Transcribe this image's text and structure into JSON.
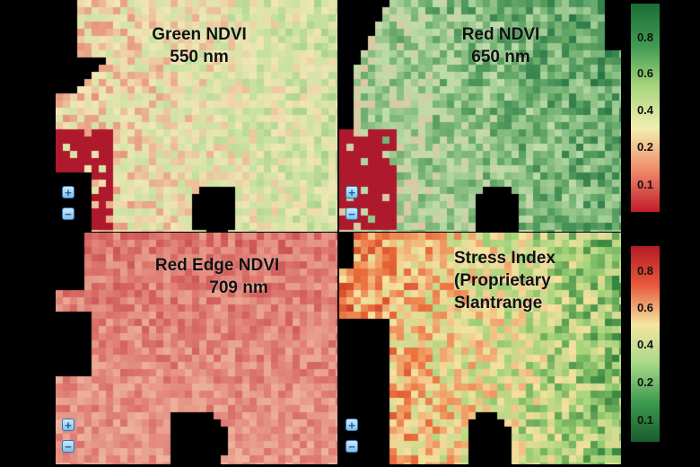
{
  "panels": [
    {
      "id": "green",
      "title_line1": "Green NDVI",
      "title_line2": "550 nm",
      "title_line3": "",
      "palette": "green-ndvi"
    },
    {
      "id": "red",
      "title_line1": "Red NDVI",
      "title_line2": "650 nm",
      "title_line3": "",
      "palette": "red-ndvi"
    },
    {
      "id": "rededge",
      "title_line1": "Red Edge NDVI",
      "title_line2": "709 nm",
      "title_line3": "",
      "palette": "red-edge"
    },
    {
      "id": "stress",
      "title_line1": "Stress Index",
      "title_line2": "(Proprietary",
      "title_line3": "Slantrange",
      "palette": "stress"
    }
  ],
  "zoom": {
    "in_label": "+",
    "out_label": "−"
  },
  "legend_top": {
    "ticks": [
      "0.8",
      "0.6",
      "0.4",
      "0.2",
      "0.1"
    ],
    "gradient": [
      "#1b6e35",
      "#3f9a52",
      "#a9d67e",
      "#f2eeb0",
      "#f08a6a",
      "#c21b2b"
    ]
  },
  "legend_bottom": {
    "ticks": [
      "0.8",
      "0.6",
      "0.4",
      "0.2",
      "0.1"
    ],
    "gradient": [
      "#b31b24",
      "#e8593c",
      "#f5e5a0",
      "#a7d98a",
      "#3c9a4e",
      "#1b5c2e"
    ]
  },
  "colors": {
    "background": "#000000",
    "ndvi_low": "#b8232f",
    "ndvi_high": "#1f7a3b"
  }
}
